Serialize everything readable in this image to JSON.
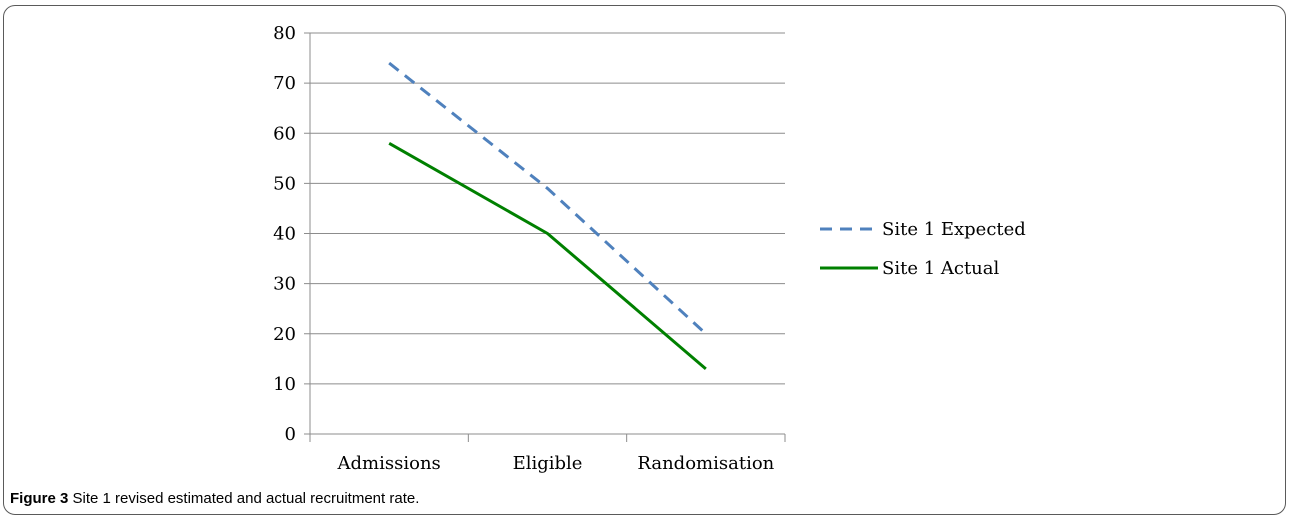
{
  "chart_data": {
    "type": "line",
    "categories": [
      "Admissions",
      "Eligible",
      "Randomisation"
    ],
    "series": [
      {
        "name": "Site 1 Expected",
        "values": [
          74,
          49,
          20
        ],
        "color": "#4f81bd",
        "style": "dashed"
      },
      {
        "name": "Site 1 Actual",
        "values": [
          58,
          40,
          13
        ],
        "color": "#008000",
        "style": "solid"
      }
    ],
    "ylim": [
      0,
      80
    ],
    "yticks": [
      0,
      10,
      20,
      30,
      40,
      50,
      60,
      70,
      80
    ],
    "grid": true,
    "legend": "right"
  },
  "caption": {
    "label": "Figure 3",
    "text": "Site 1 revised estimated and actual recruitment rate."
  }
}
